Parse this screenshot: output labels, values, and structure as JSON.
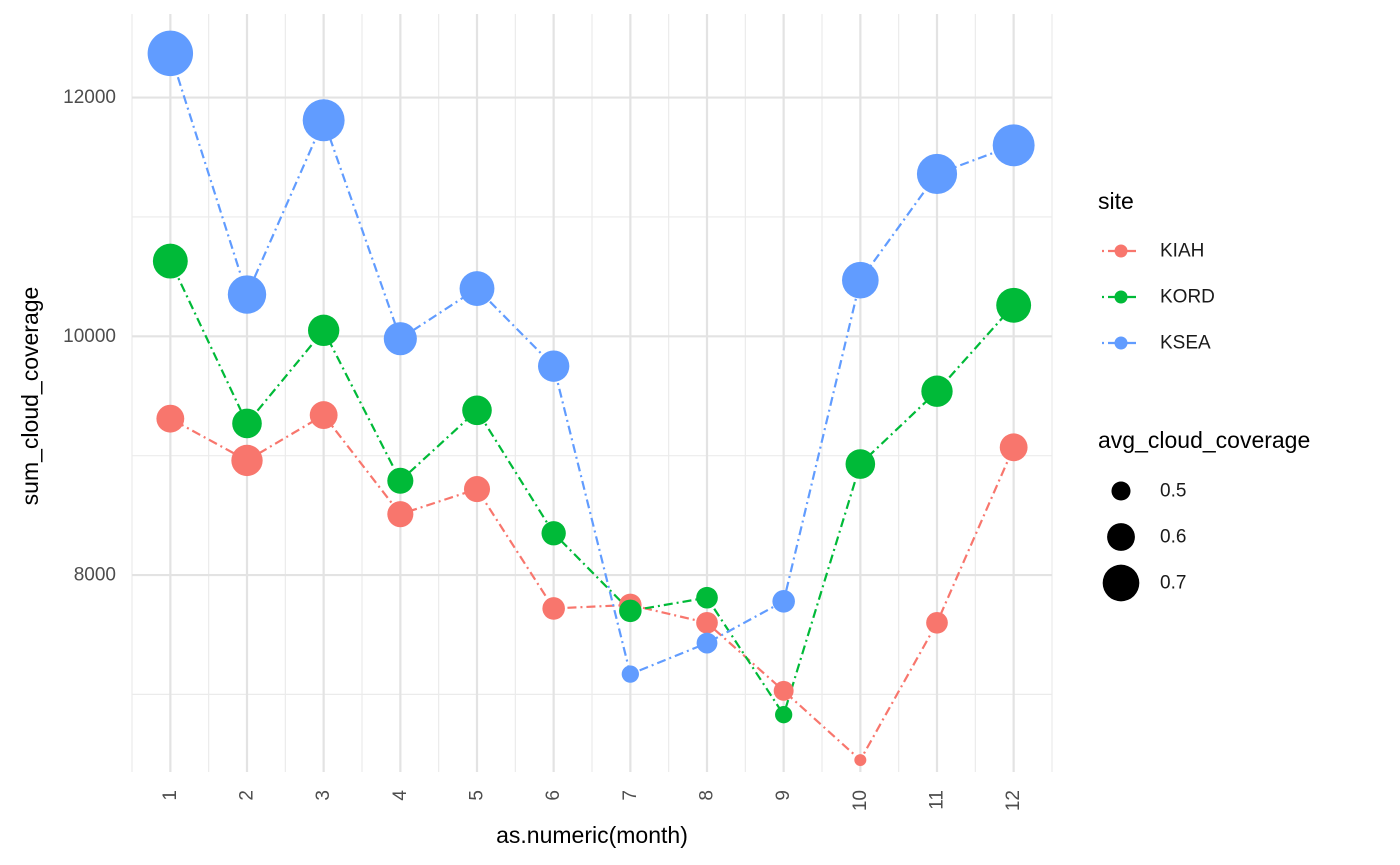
{
  "chart_data": {
    "type": "scatter",
    "xlabel": "as.numeric(month)",
    "ylabel": "sum_cloud_coverage",
    "x": [
      1,
      2,
      3,
      4,
      5,
      6,
      7,
      8,
      9,
      10,
      11,
      12
    ],
    "x_ticks": [
      "1",
      "2",
      "3",
      "4",
      "5",
      "6",
      "7",
      "8",
      "9",
      "10",
      "11",
      "12"
    ],
    "y_ticks": [
      8000,
      10000,
      12000
    ],
    "y_tick_labels": [
      "8000",
      "10000",
      "12000"
    ],
    "xlim": [
      0.5,
      12.5
    ],
    "ylim": [
      6350,
      12700
    ],
    "grid": true,
    "line_style": "dotdash",
    "legend_position": "right",
    "series": [
      {
        "name": "KIAH",
        "color": "#F8766D",
        "values": [
          9310,
          8960,
          9340,
          8510,
          8720,
          7720,
          7750,
          7600,
          7030,
          6450,
          7600,
          9070
        ],
        "avg_cloud_coverage": [
          0.6,
          0.64,
          0.6,
          0.58,
          0.58,
          0.54,
          0.54,
          0.53,
          0.51,
          0.42,
          0.53,
          0.6
        ]
      },
      {
        "name": "KORD",
        "color": "#00BA38",
        "values": [
          10630,
          9270,
          10050,
          8790,
          9380,
          8350,
          7700,
          7810,
          6830,
          8930,
          9540,
          10260
        ],
        "avg_cloud_coverage": [
          0.68,
          0.62,
          0.64,
          0.58,
          0.62,
          0.56,
          0.54,
          0.53,
          0.48,
          0.62,
          0.64,
          0.68
        ]
      },
      {
        "name": "KSEA",
        "color": "#619CFF",
        "values": [
          12370,
          10350,
          11810,
          9980,
          10400,
          9750,
          7170,
          7430,
          7780,
          10470,
          11360,
          11600
        ],
        "avg_cloud_coverage": [
          0.8,
          0.72,
          0.76,
          0.66,
          0.68,
          0.64,
          0.48,
          0.52,
          0.54,
          0.7,
          0.74,
          0.76
        ]
      }
    ],
    "legends": {
      "color": {
        "title": "site",
        "entries": [
          "KIAH",
          "KORD",
          "KSEA"
        ]
      },
      "size": {
        "title": "avg_cloud_coverage",
        "entries": [
          "0.5",
          "0.6",
          "0.7"
        ],
        "values": [
          0.5,
          0.6,
          0.7
        ]
      }
    }
  }
}
